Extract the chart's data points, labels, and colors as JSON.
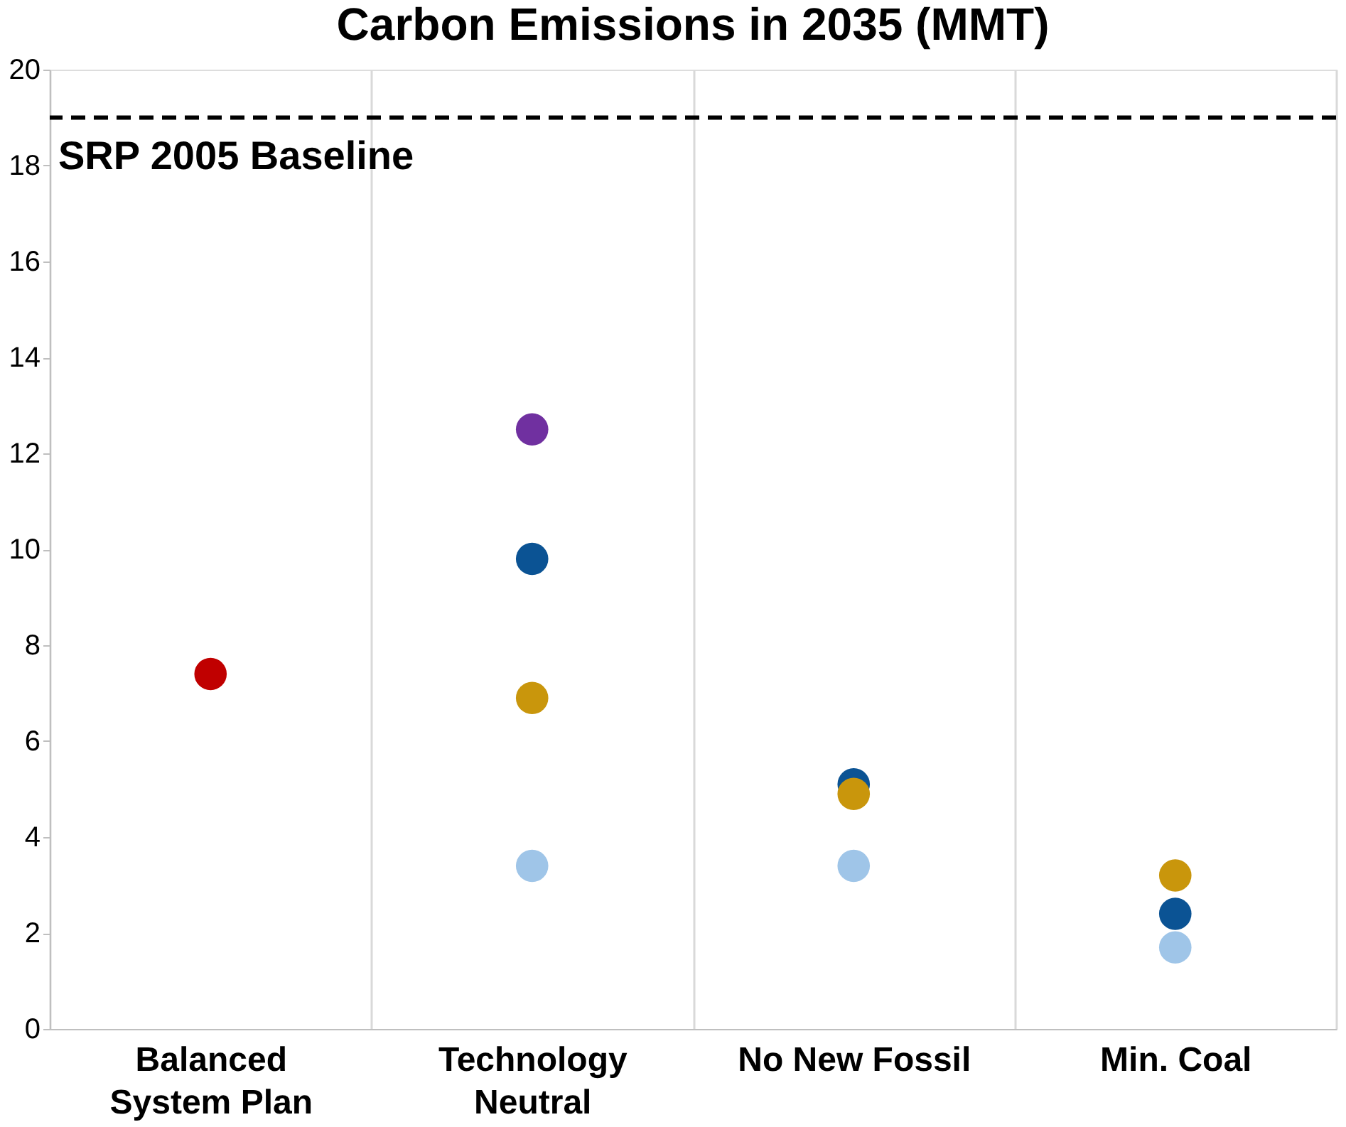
{
  "chart_data": {
    "type": "scatter",
    "title": "Carbon Emissions in 2035 (MMT)",
    "categories": [
      "Balanced\nSystem Plan",
      "Technology\nNeutral",
      "No New Fossil",
      "Min. Coal"
    ],
    "series": [
      {
        "color": "#c00000",
        "values": [
          7.4,
          null,
          null,
          null
        ]
      },
      {
        "color": "#7030a0",
        "values": [
          null,
          12.5,
          null,
          null
        ]
      },
      {
        "color": "#0b5394",
        "values": [
          null,
          9.8,
          5.1,
          2.4
        ]
      },
      {
        "color": "#c9960c",
        "values": [
          null,
          6.9,
          4.9,
          3.2
        ]
      },
      {
        "color": "#9fc5e8",
        "values": [
          null,
          3.4,
          3.4,
          1.7
        ]
      }
    ],
    "ylim": [
      0,
      20
    ],
    "yticks": [
      0,
      2,
      4,
      6,
      8,
      10,
      12,
      14,
      16,
      18,
      20
    ],
    "ref_lines": [
      {
        "axis": "y",
        "value": 19,
        "label": "SRP 2005 Baseline",
        "color": "#000000",
        "line_style": "dashed"
      }
    ],
    "grid": "x",
    "legend": false,
    "marker": "circle"
  }
}
